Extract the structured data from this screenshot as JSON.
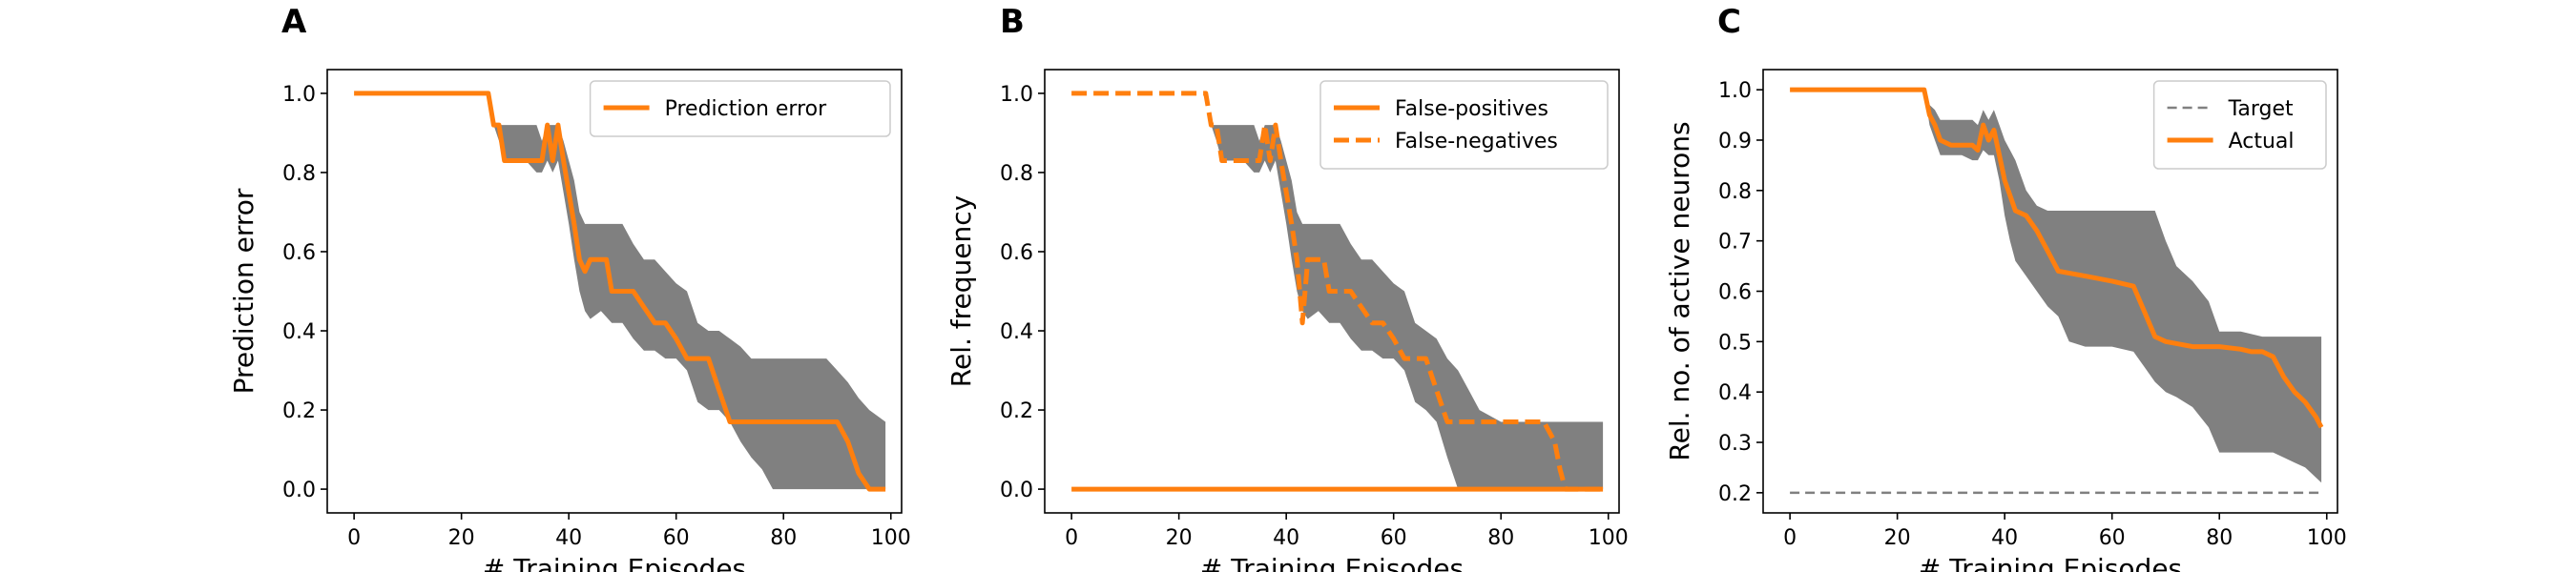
{
  "figure": {
    "panels": [
      "A",
      "B",
      "C"
    ]
  },
  "colors": {
    "series": "#ff7f0e",
    "band": "#808080",
    "target": "#808080",
    "axis": "#000000"
  },
  "chart_data": [
    {
      "type": "line",
      "panel_label": "A",
      "xlabel": "# Training Episodes",
      "ylabel": "Prediction error",
      "xlim": [
        -5,
        102
      ],
      "ylim": [
        -0.06,
        1.06
      ],
      "xticks": [
        0,
        20,
        40,
        60,
        80,
        100
      ],
      "yticks": [
        0.0,
        0.2,
        0.4,
        0.6,
        0.8,
        1.0
      ],
      "ytick_labels": [
        "0.0",
        "0.2",
        "0.4",
        "0.6",
        "0.8",
        "1.0"
      ],
      "grid": false,
      "legend": "top-right",
      "series": [
        {
          "name": "Prediction error",
          "style": "solid",
          "x": [
            0,
            25,
            26,
            27,
            28,
            29,
            30,
            31,
            32,
            33,
            34,
            35,
            36,
            37,
            38,
            39,
            40,
            41,
            42,
            43,
            44,
            45,
            46,
            47,
            48,
            50,
            52,
            54,
            56,
            58,
            60,
            62,
            64,
            66,
            68,
            70,
            72,
            80,
            88,
            90,
            92,
            94,
            96,
            98,
            99
          ],
          "y": [
            1.0,
            1.0,
            0.92,
            0.92,
            0.83,
            0.83,
            0.83,
            0.83,
            0.83,
            0.83,
            0.83,
            0.83,
            0.92,
            0.83,
            0.92,
            0.83,
            0.75,
            0.67,
            0.58,
            0.55,
            0.58,
            0.58,
            0.58,
            0.58,
            0.5,
            0.5,
            0.5,
            0.46,
            0.42,
            0.42,
            0.38,
            0.33,
            0.33,
            0.33,
            0.25,
            0.17,
            0.17,
            0.17,
            0.17,
            0.17,
            0.12,
            0.04,
            0.0,
            0.0,
            0.0
          ]
        }
      ],
      "band": {
        "x": [
          0,
          25,
          26,
          27,
          28,
          30,
          32,
          34,
          35,
          36,
          37,
          38,
          39,
          40,
          41,
          42,
          43,
          44,
          46,
          48,
          50,
          52,
          54,
          56,
          58,
          60,
          62,
          64,
          66,
          68,
          70,
          72,
          74,
          76,
          78,
          80,
          84,
          88,
          90,
          92,
          94,
          96,
          98,
          99
        ],
        "lower": [
          1.0,
          1.0,
          0.92,
          0.88,
          0.83,
          0.83,
          0.83,
          0.8,
          0.8,
          0.83,
          0.8,
          0.83,
          0.75,
          0.67,
          0.58,
          0.5,
          0.45,
          0.43,
          0.45,
          0.42,
          0.42,
          0.38,
          0.35,
          0.35,
          0.33,
          0.33,
          0.3,
          0.22,
          0.2,
          0.2,
          0.17,
          0.12,
          0.08,
          0.05,
          0.0,
          0.0,
          0.0,
          0.0,
          0.0,
          0.0,
          0.0,
          0.0,
          0.0,
          0.0
        ],
        "upper": [
          1.0,
          1.0,
          0.92,
          0.92,
          0.92,
          0.92,
          0.92,
          0.92,
          0.88,
          0.92,
          0.92,
          0.92,
          0.88,
          0.83,
          0.78,
          0.7,
          0.67,
          0.67,
          0.67,
          0.67,
          0.67,
          0.62,
          0.58,
          0.58,
          0.55,
          0.52,
          0.5,
          0.42,
          0.4,
          0.4,
          0.38,
          0.36,
          0.33,
          0.33,
          0.33,
          0.33,
          0.33,
          0.33,
          0.3,
          0.27,
          0.23,
          0.2,
          0.18,
          0.17
        ]
      }
    },
    {
      "type": "line",
      "panel_label": "B",
      "xlabel": "# Training Episodes",
      "ylabel": "Rel. frequency",
      "xlim": [
        -5,
        102
      ],
      "ylim": [
        -0.06,
        1.06
      ],
      "xticks": [
        0,
        20,
        40,
        60,
        80,
        100
      ],
      "yticks": [
        0.0,
        0.2,
        0.4,
        0.6,
        0.8,
        1.0
      ],
      "ytick_labels": [
        "0.0",
        "0.2",
        "0.4",
        "0.6",
        "0.8",
        "1.0"
      ],
      "grid": false,
      "legend": "top-right",
      "series": [
        {
          "name": "False-positives",
          "style": "solid",
          "x": [
            0,
            99
          ],
          "y": [
            0.0,
            0.0
          ]
        },
        {
          "name": "False-negatives",
          "style": "dashed",
          "x": [
            0,
            25,
            26,
            27,
            28,
            29,
            30,
            31,
            32,
            33,
            34,
            35,
            36,
            37,
            38,
            39,
            40,
            41,
            42,
            43,
            44,
            45,
            46,
            47,
            48,
            50,
            52,
            54,
            56,
            58,
            60,
            62,
            64,
            66,
            68,
            70,
            72,
            80,
            88,
            90,
            91,
            92,
            99
          ],
          "y": [
            1.0,
            1.0,
            0.92,
            0.92,
            0.83,
            0.83,
            0.83,
            0.83,
            0.83,
            0.83,
            0.83,
            0.83,
            0.92,
            0.83,
            0.92,
            0.83,
            0.75,
            0.67,
            0.58,
            0.42,
            0.58,
            0.58,
            0.58,
            0.58,
            0.5,
            0.5,
            0.5,
            0.46,
            0.42,
            0.42,
            0.38,
            0.33,
            0.33,
            0.33,
            0.25,
            0.17,
            0.17,
            0.17,
            0.17,
            0.12,
            0.05,
            0.0,
            0.0
          ]
        }
      ],
      "band": {
        "x": [
          0,
          25,
          26,
          27,
          28,
          30,
          32,
          34,
          35,
          36,
          37,
          38,
          39,
          40,
          41,
          42,
          43,
          44,
          46,
          48,
          50,
          52,
          54,
          56,
          58,
          60,
          62,
          64,
          66,
          68,
          70,
          72,
          74,
          76,
          80,
          84,
          88,
          90,
          92,
          94,
          96,
          98,
          99
        ],
        "lower": [
          1.0,
          1.0,
          0.92,
          0.88,
          0.83,
          0.83,
          0.83,
          0.8,
          0.8,
          0.83,
          0.8,
          0.83,
          0.75,
          0.67,
          0.58,
          0.5,
          0.45,
          0.43,
          0.45,
          0.42,
          0.42,
          0.38,
          0.35,
          0.35,
          0.33,
          0.33,
          0.3,
          0.22,
          0.2,
          0.17,
          0.08,
          0.0,
          0.0,
          0.0,
          0.0,
          0.0,
          0.0,
          0.0,
          0.0,
          0.0,
          0.0,
          0.0,
          0.0
        ],
        "upper": [
          1.0,
          1.0,
          0.92,
          0.92,
          0.92,
          0.92,
          0.92,
          0.92,
          0.88,
          0.92,
          0.92,
          0.92,
          0.88,
          0.83,
          0.78,
          0.7,
          0.67,
          0.67,
          0.67,
          0.67,
          0.67,
          0.62,
          0.58,
          0.58,
          0.55,
          0.52,
          0.5,
          0.42,
          0.4,
          0.38,
          0.33,
          0.3,
          0.25,
          0.2,
          0.17,
          0.17,
          0.17,
          0.17,
          0.17,
          0.17,
          0.17,
          0.17,
          0.17
        ]
      }
    },
    {
      "type": "line",
      "panel_label": "C",
      "xlabel": "# Training Episodes",
      "ylabel": "Rel. no. of active neurons",
      "xlim": [
        -5,
        102
      ],
      "ylim": [
        0.16,
        1.04
      ],
      "xticks": [
        0,
        20,
        40,
        60,
        80,
        100
      ],
      "yticks": [
        0.2,
        0.3,
        0.4,
        0.5,
        0.6,
        0.7,
        0.8,
        0.9,
        1.0
      ],
      "ytick_labels": [
        "0.2",
        "0.3",
        "0.4",
        "0.5",
        "0.6",
        "0.7",
        "0.8",
        "0.9",
        "1.0"
      ],
      "grid": false,
      "legend": "top-right",
      "series": [
        {
          "name": "Target",
          "style": "dashed",
          "x": [
            0,
            99
          ],
          "y": [
            0.2,
            0.2
          ]
        },
        {
          "name": "Actual",
          "style": "solid",
          "x": [
            0,
            25,
            26,
            27,
            28,
            30,
            32,
            34,
            35,
            36,
            37,
            38,
            39,
            40,
            41,
            42,
            44,
            46,
            48,
            50,
            55,
            60,
            64,
            66,
            68,
            70,
            75,
            80,
            84,
            86,
            88,
            90,
            92,
            94,
            96,
            98,
            99
          ],
          "y": [
            1.0,
            1.0,
            0.95,
            0.93,
            0.9,
            0.89,
            0.89,
            0.89,
            0.88,
            0.93,
            0.9,
            0.92,
            0.87,
            0.82,
            0.79,
            0.76,
            0.75,
            0.72,
            0.68,
            0.64,
            0.63,
            0.62,
            0.61,
            0.56,
            0.51,
            0.5,
            0.49,
            0.49,
            0.485,
            0.48,
            0.48,
            0.47,
            0.43,
            0.4,
            0.38,
            0.35,
            0.33
          ]
        }
      ],
      "band": {
        "x": [
          0,
          25,
          26,
          27,
          28,
          30,
          32,
          34,
          35,
          36,
          37,
          38,
          39,
          40,
          41,
          42,
          44,
          46,
          48,
          50,
          52,
          55,
          60,
          64,
          66,
          68,
          70,
          72,
          75,
          78,
          80,
          84,
          88,
          90,
          92,
          94,
          96,
          98,
          99
        ],
        "lower": [
          1.0,
          1.0,
          0.93,
          0.9,
          0.87,
          0.87,
          0.87,
          0.86,
          0.86,
          0.88,
          0.87,
          0.87,
          0.82,
          0.75,
          0.7,
          0.66,
          0.63,
          0.6,
          0.57,
          0.55,
          0.5,
          0.49,
          0.49,
          0.48,
          0.45,
          0.42,
          0.4,
          0.39,
          0.37,
          0.33,
          0.28,
          0.28,
          0.28,
          0.28,
          0.27,
          0.26,
          0.25,
          0.23,
          0.22
        ],
        "upper": [
          1.0,
          1.0,
          0.97,
          0.96,
          0.94,
          0.94,
          0.94,
          0.94,
          0.93,
          0.96,
          0.94,
          0.96,
          0.93,
          0.9,
          0.88,
          0.86,
          0.8,
          0.77,
          0.76,
          0.76,
          0.76,
          0.76,
          0.76,
          0.76,
          0.76,
          0.76,
          0.7,
          0.65,
          0.62,
          0.58,
          0.52,
          0.52,
          0.51,
          0.51,
          0.51,
          0.51,
          0.51,
          0.51,
          0.51
        ]
      }
    }
  ]
}
